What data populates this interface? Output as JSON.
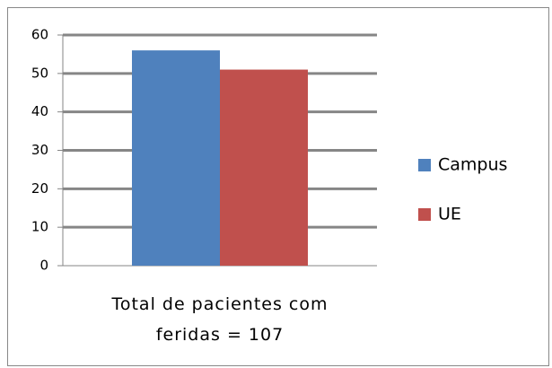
{
  "chart_data": {
    "type": "bar",
    "categories": [
      "Total de pacientes com feridas = 107"
    ],
    "series": [
      {
        "name": "Campus",
        "color": "#4f81bd",
        "values": [
          56
        ]
      },
      {
        "name": "UE",
        "color": "#c0504d",
        "values": [
          51
        ]
      }
    ],
    "ylim": [
      0,
      60
    ],
    "yticks": [
      0,
      10,
      20,
      30,
      40,
      50,
      60
    ],
    "grid": true,
    "legend": "right"
  }
}
